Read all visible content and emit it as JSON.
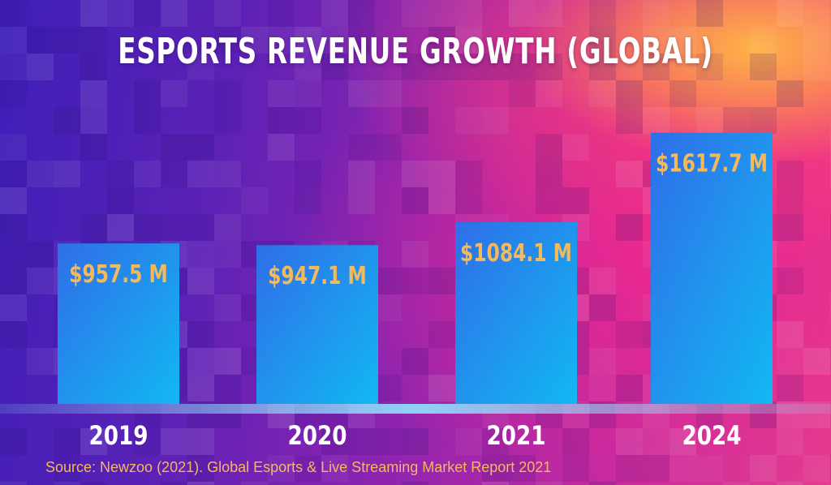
{
  "chart_data": {
    "type": "bar",
    "title": "ESPORTS REVENUE GROWTH (GLOBAL)",
    "categories": [
      "2019",
      "2020",
      "2021",
      "2024"
    ],
    "values": [
      957.5,
      947.1,
      1084.1,
      1617.7
    ],
    "value_labels": [
      "$957.5 M",
      "$947.1 M",
      "$1084.1 M",
      "$1617.7 M"
    ],
    "xlabel": "",
    "ylabel": "",
    "ylim": [
      0,
      1800
    ],
    "grid": false,
    "legend": "none"
  },
  "source": "Source:  Newzoo (2021). Global Esports & Live Streaming Market Report 2021",
  "colors": {
    "bar_top": "#2f6ee8",
    "bar_bottom": "#12b8f2",
    "value_label": "#f3b95a",
    "year_label": "#ffffff",
    "source": "#f3b95a",
    "baseline": "#8fe6ff"
  }
}
